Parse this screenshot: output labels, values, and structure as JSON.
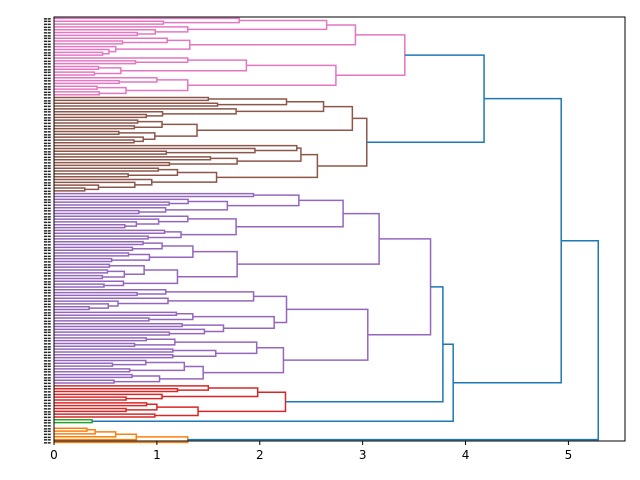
{
  "chart_data": {
    "type": "dendrogram",
    "orientation": "left",
    "title": "",
    "xlabel": "",
    "ylabel": "",
    "xlim": [
      0,
      5.55
    ],
    "x_ticks": [
      0,
      1,
      2,
      3,
      4,
      5
    ],
    "x_tick_labels": [
      "0",
      "1",
      "2",
      "3",
      "4",
      "5"
    ],
    "grid": false,
    "leaf_labels_legible": false,
    "clusters": [
      {
        "name": "cluster-pink",
        "color": "#e377c2",
        "leaf_count": 28,
        "root_height": 3.41,
        "subclusters": [
          {
            "height": 2.93,
            "children": [
              {
                "height": 2.65,
                "children_heights": [
                  1.8,
                  1.3
                ]
              },
              {
                "height": 1.32,
                "children_heights": [
                  1.1,
                  0.6
                ]
              }
            ]
          },
          {
            "height": 2.74,
            "children": [
              {
                "height": 1.87,
                "children_heights": [
                  1.3,
                  0.65
                ]
              },
              {
                "height": 1.3,
                "children_heights": [
                  1.0,
                  0.7
                ]
              }
            ]
          }
        ]
      },
      {
        "name": "cluster-brown",
        "color": "#8c564b",
        "leaf_count": 34,
        "root_height": 3.04,
        "subclusters": [
          {
            "height": 2.9,
            "children": [
              {
                "height": 2.62,
                "children_heights": [
                  2.26,
                  1.77
                ]
              },
              {
                "height": 1.39,
                "children_heights": [
                  1.05,
                  0.98
                ]
              }
            ]
          },
          {
            "height": 2.56,
            "children": [
              {
                "height": 2.4,
                "children_heights": [
                  2.36,
                  1.78
                ]
              },
              {
                "height": 1.58,
                "children_heights": [
                  1.2,
                  0.95
                ]
              }
            ]
          }
        ]
      },
      {
        "name": "cluster-purple",
        "color": "#9467bd",
        "leaf_count": 68,
        "root_height": 3.66,
        "subclusters": [
          {
            "height": 3.16,
            "children": [
              {
                "height": 2.81,
                "children_heights": [
                  2.38,
                  1.77
                ]
              },
              {
                "height": 1.78,
                "children_heights": [
                  1.35,
                  1.2
                ]
              }
            ]
          },
          {
            "height": 3.05,
            "children": [
              {
                "height": 2.26,
                "children_heights": [
                  1.94,
                  2.14
                ]
              },
              {
                "height": 2.23,
                "children_heights": [
                  1.97,
                  1.45
                ]
              }
            ]
          }
        ]
      },
      {
        "name": "cluster-red",
        "color": "#d62728",
        "leaf_count": 12,
        "root_height": 2.25,
        "subclusters": [
          {
            "height": 1.98,
            "children": [
              {
                "height": 1.5,
                "children_heights": [
                  1.35,
                  1.2
                ]
              },
              {
                "height": 1.05,
                "children_heights": [
                  0.8,
                  0.7
                ]
              }
            ]
          },
          {
            "height": 1.4,
            "children": [
              {
                "height": 1.0,
                "children_heights": [
                  0.9,
                  0.7
                ]
              }
            ]
          }
        ]
      },
      {
        "name": "cluster-green",
        "color": "#2ca02c",
        "leaf_count": 2,
        "root_height": 0.37
      },
      {
        "name": "cluster-orange",
        "color": "#ff7f0e",
        "leaf_count": 6,
        "root_height": 1.3,
        "chain_heights": [
          0.4,
          0.6,
          0.8,
          1.3
        ]
      }
    ],
    "top_level_merges": [
      {
        "left": "cluster-pink",
        "right": "cluster-brown",
        "height": 4.18,
        "color": "#1f77b4"
      },
      {
        "left": "cluster-purple",
        "right": "cluster-red",
        "height": 3.78,
        "color": "#1f77b4"
      },
      {
        "left": "purple+red",
        "right": "cluster-green",
        "height": 3.88,
        "color": "#1f77b4"
      },
      {
        "left": "pink+brown",
        "right": "purple+red+green",
        "height": 4.93,
        "color": "#1f77b4"
      },
      {
        "left": "all-above",
        "right": "cluster-orange",
        "height": 5.29,
        "color": "#1f77b4"
      }
    ],
    "above_threshold_color": "#1f77b4"
  }
}
